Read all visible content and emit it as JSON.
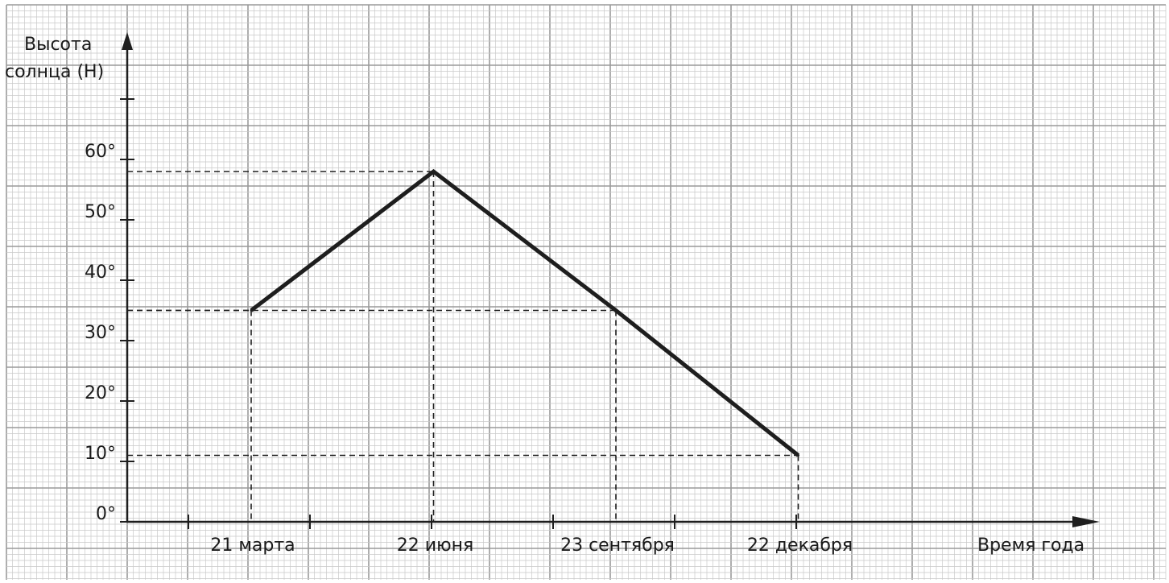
{
  "chart_data": {
    "type": "line",
    "title": "",
    "ylabel_lines": [
      "Высота",
      "солнца (Н)"
    ],
    "xlabel": "Время года",
    "y_tick_labels": [
      "0°",
      "10°",
      "20°",
      "30°",
      "40°",
      "50°",
      "60°"
    ],
    "y_tick_values": [
      0,
      10,
      20,
      30,
      40,
      50,
      60
    ],
    "ylim": [
      0,
      70
    ],
    "categories": [
      "21 марта",
      "22 июня",
      "23 сентября",
      "22 декабря"
    ],
    "values": [
      35,
      58,
      35,
      11
    ],
    "grid": true,
    "guide_lines": "dashed"
  },
  "colors": {
    "grid_minor": "#c9c9c9",
    "grid_major": "#9a9a9a",
    "line": "#1e1e1e",
    "axis": "#1e1e1e"
  }
}
